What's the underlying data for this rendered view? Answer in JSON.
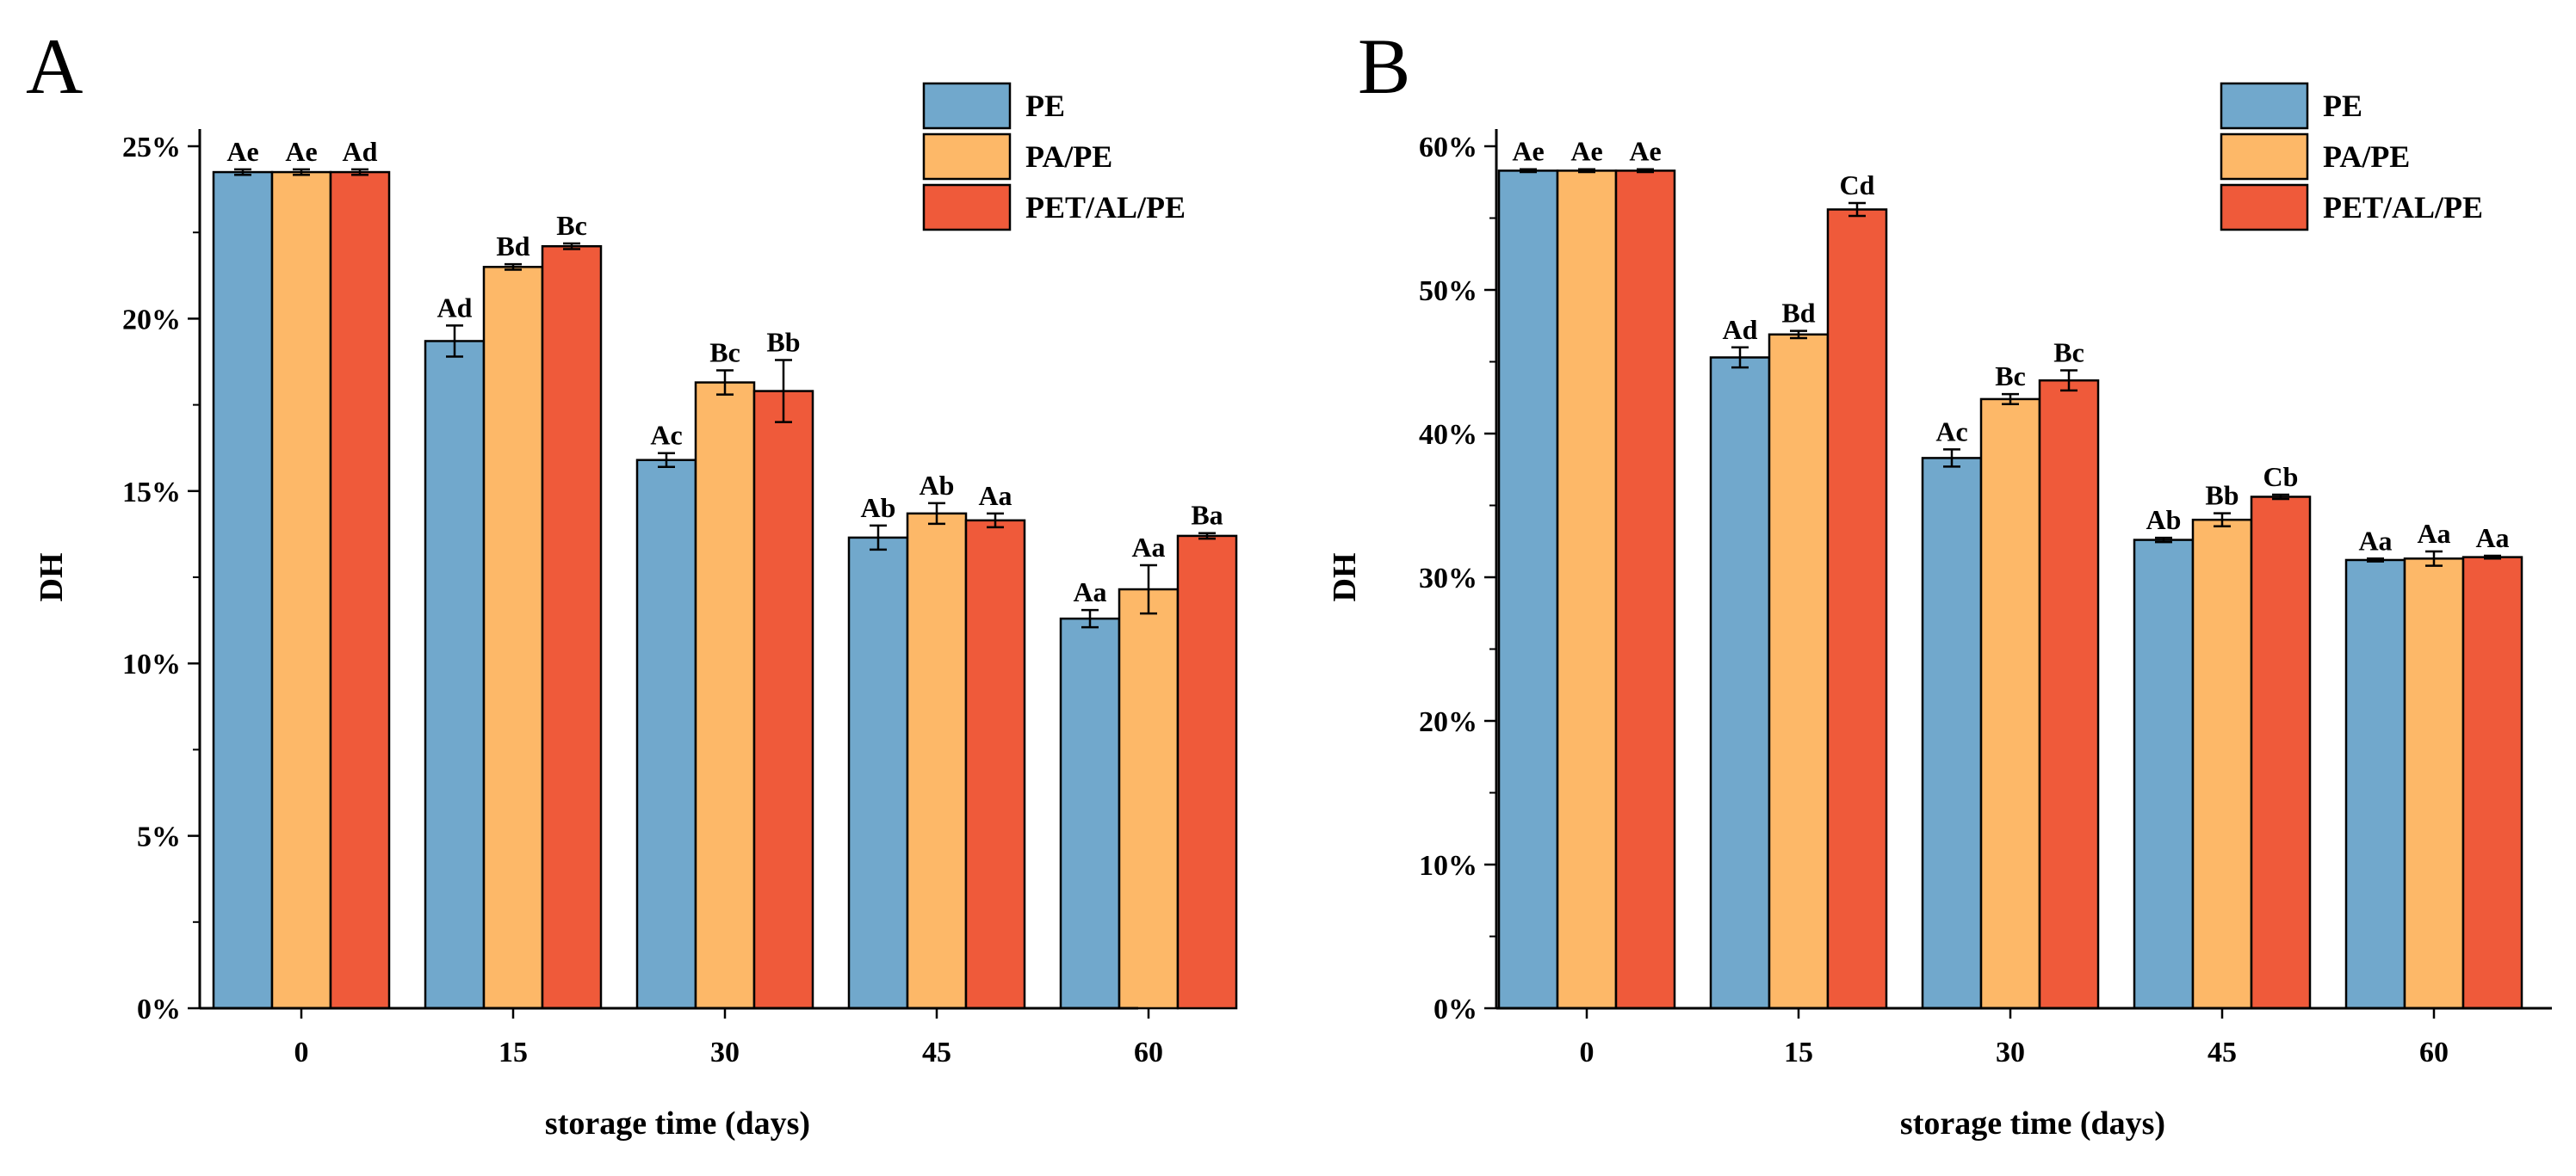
{
  "colors": {
    "PE": "#71a8cc",
    "PA/PE": "#fdb868",
    "PET/AL/PE": "#ef5a3a"
  },
  "chart_data": [
    {
      "type": "bar",
      "panel": "A",
      "categories": [
        "0",
        "15",
        "30",
        "45",
        "60"
      ],
      "xlabel": "storage time (days)",
      "ylabel": "DH",
      "ylim": [
        0,
        25
      ],
      "yticks": [
        0,
        5,
        10,
        15,
        20,
        25
      ],
      "ytick_suffix": "%",
      "legend": "top-right",
      "grid": false,
      "series": [
        {
          "name": "PE",
          "values": [
            24.25,
            19.35,
            15.9,
            13.65,
            11.3
          ],
          "errors": [
            0.08,
            0.45,
            0.2,
            0.35,
            0.25
          ],
          "labels": [
            "Ae",
            "Ad",
            "Ac",
            "Ab",
            "Aa"
          ]
        },
        {
          "name": "PA/PE",
          "values": [
            24.25,
            21.5,
            18.15,
            14.35,
            12.15
          ],
          "errors": [
            0.08,
            0.08,
            0.35,
            0.3,
            0.7
          ],
          "labels": [
            "Ae",
            "Bd",
            "Bc",
            "Ab",
            "Aa"
          ]
        },
        {
          "name": "PET/AL/PE",
          "values": [
            24.25,
            22.1,
            17.9,
            14.15,
            13.7
          ],
          "errors": [
            0.08,
            0.08,
            0.9,
            0.2,
            0.08
          ],
          "labels": [
            "Ad",
            "Bc",
            "Bb",
            "Aa",
            "Ba"
          ]
        }
      ]
    },
    {
      "type": "bar",
      "panel": "B",
      "categories": [
        "0",
        "15",
        "30",
        "45",
        "60"
      ],
      "xlabel": "storage time (days)",
      "ylabel": "DH",
      "ylim": [
        0,
        60
      ],
      "yticks": [
        0,
        10,
        20,
        30,
        40,
        50,
        60
      ],
      "ytick_suffix": "%",
      "legend": "top-right",
      "grid": false,
      "series": [
        {
          "name": "PE",
          "values": [
            58.3,
            45.3,
            38.3,
            32.6,
            31.2
          ],
          "errors": [
            0.1,
            0.7,
            0.6,
            0.15,
            0.1
          ],
          "labels": [
            "Ae",
            "Ad",
            "Ac",
            "Ab",
            "Aa"
          ]
        },
        {
          "name": "PA/PE",
          "values": [
            58.3,
            46.9,
            42.4,
            34.0,
            31.3
          ],
          "errors": [
            0.1,
            0.25,
            0.35,
            0.45,
            0.5
          ],
          "labels": [
            "Ae",
            "Bd",
            "Bc",
            "Bb",
            "Aa"
          ]
        },
        {
          "name": "PET/AL/PE",
          "values": [
            58.3,
            55.6,
            43.7,
            35.6,
            31.4
          ],
          "errors": [
            0.1,
            0.45,
            0.7,
            0.15,
            0.1
          ],
          "labels": [
            "Ae",
            "Cd",
            "Bc",
            "Cb",
            "Aa"
          ]
        }
      ]
    }
  ]
}
